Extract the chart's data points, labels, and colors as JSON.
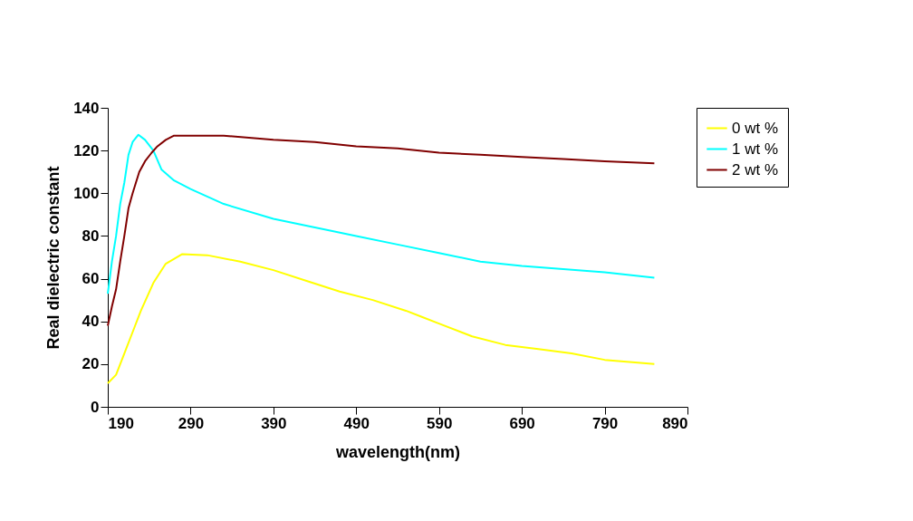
{
  "chart_data": {
    "type": "line",
    "xlabel": "wavelength(nm)",
    "ylabel": "Real  dielectric constant",
    "xlim": [
      190,
      890
    ],
    "xticks": [
      190,
      290,
      390,
      490,
      590,
      690,
      790,
      890
    ],
    "ylim": [
      0,
      140
    ],
    "yticks": [
      0,
      20,
      40,
      60,
      80,
      100,
      120,
      140
    ],
    "grid": false,
    "legend": "top right",
    "marker": "none",
    "line_style": "solid",
    "series": [
      {
        "name": "0 wt %",
        "color": "#ffff00",
        "x": [
          190,
          200,
          210,
          220,
          230,
          245,
          260,
          280,
          310,
          350,
          390,
          430,
          470,
          510,
          550,
          570,
          590,
          630,
          670,
          710,
          750,
          790,
          850
        ],
        "values": [
          11,
          15,
          25,
          35,
          45,
          58,
          67,
          71.5,
          71,
          68,
          64,
          59,
          54,
          50,
          45,
          42,
          39,
          33,
          29,
          27,
          25,
          22,
          20
        ]
      },
      {
        "name": "1 wt %",
        "color": "#00ffff",
        "x": [
          190,
          195,
          200,
          205,
          210,
          215,
          220,
          227,
          235,
          245,
          255,
          270,
          290,
          330,
          390,
          440,
          490,
          540,
          590,
          640,
          690,
          740,
          790,
          850
        ],
        "values": [
          53,
          68,
          80,
          95,
          105,
          118,
          124,
          127.4,
          125,
          120,
          111,
          106,
          102,
          95,
          88,
          84,
          80,
          76,
          72,
          68,
          66,
          64.5,
          63,
          60.5
        ]
      },
      {
        "name": "2 wt %",
        "color": "#800000",
        "x": [
          190,
          195,
          200,
          205,
          210,
          215,
          220,
          228,
          235,
          243,
          250,
          260,
          270,
          330,
          390,
          440,
          490,
          540,
          590,
          640,
          690,
          740,
          790,
          850
        ],
        "values": [
          38,
          47,
          55,
          68,
          80,
          93,
          100,
          110,
          115,
          119,
          122,
          125,
          127,
          127,
          125,
          124,
          122,
          121,
          119,
          118,
          117,
          116,
          115,
          114
        ]
      }
    ]
  }
}
